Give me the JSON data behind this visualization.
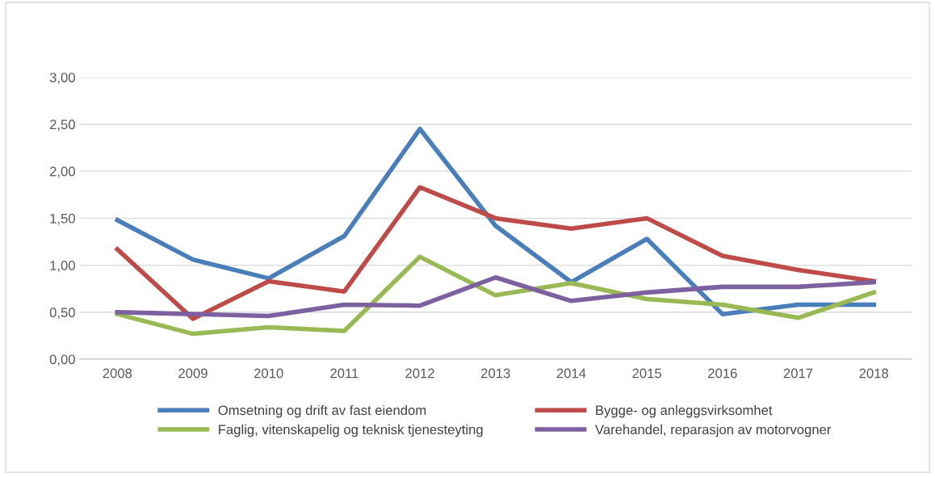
{
  "chart_data": {
    "type": "line",
    "categories": [
      "2008",
      "2009",
      "2010",
      "2011",
      "2012",
      "2013",
      "2014",
      "2015",
      "2016",
      "2017",
      "2018"
    ],
    "series": [
      {
        "name": "Omsetning og drift av fast eiendom",
        "color": "#4a7ebb",
        "values": [
          1.48,
          1.06,
          0.86,
          1.31,
          2.45,
          1.42,
          0.82,
          1.28,
          0.48,
          0.58,
          0.58
        ]
      },
      {
        "name": "Bygge- og anleggsvirksomhet",
        "color": "#be4b48",
        "values": [
          1.17,
          0.43,
          0.83,
          0.72,
          1.83,
          1.5,
          1.39,
          1.5,
          1.1,
          0.95,
          0.83
        ]
      },
      {
        "name": "Faglig, vitenskapelig og teknisk tjenesteyting",
        "color": "#98b954",
        "values": [
          0.48,
          0.27,
          0.34,
          0.3,
          1.09,
          0.68,
          0.81,
          0.64,
          0.58,
          0.44,
          0.71
        ]
      },
      {
        "name": "Varehandel, reparasjon av motorvogner",
        "color": "#7d60a0",
        "values": [
          0.5,
          0.48,
          0.46,
          0.58,
          0.57,
          0.87,
          0.62,
          0.71,
          0.77,
          0.77,
          0.82
        ]
      }
    ],
    "ylim": [
      0,
      3
    ],
    "yticks": [
      {
        "value": 0,
        "label": "0,00"
      },
      {
        "value": 0.5,
        "label": "0,50"
      },
      {
        "value": 1,
        "label": "1,00"
      },
      {
        "value": 1.5,
        "label": "1,50"
      },
      {
        "value": 2,
        "label": "2,00"
      },
      {
        "value": 2.5,
        "label": "2,50"
      },
      {
        "value": 3,
        "label": "3,00"
      }
    ],
    "grid": "y",
    "legend": "bottom",
    "marker": "none",
    "line_style": "solid"
  }
}
